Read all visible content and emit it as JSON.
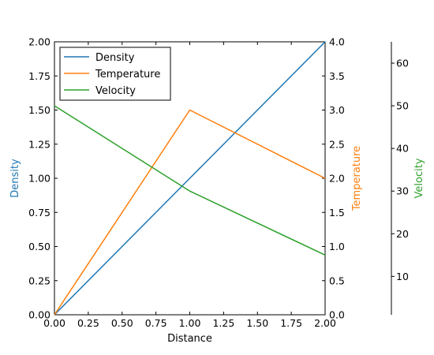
{
  "chart_data": {
    "type": "line",
    "xlabel": "Distance",
    "xlim": [
      0,
      2
    ],
    "xticks": [
      "0.00",
      "0.25",
      "0.50",
      "0.75",
      "1.00",
      "1.25",
      "1.50",
      "1.75",
      "2.00"
    ],
    "x": [
      0,
      1,
      2
    ],
    "grid": false,
    "legend_placement": "top-left",
    "axes": [
      {
        "id": "density",
        "label": "Density",
        "color": "#1f77b4",
        "ylim": [
          0,
          2
        ],
        "ticks": [
          "0.00",
          "0.25",
          "0.50",
          "0.75",
          "1.00",
          "1.25",
          "1.50",
          "1.75",
          "2.00"
        ]
      },
      {
        "id": "temperature",
        "label": "Temperature",
        "color": "#ff7f0e",
        "ylim": [
          0,
          4
        ],
        "ticks": [
          "0.0",
          "0.5",
          "1.0",
          "1.5",
          "2.0",
          "2.5",
          "3.0",
          "3.5",
          "4.0"
        ]
      },
      {
        "id": "velocity",
        "label": "Velocity",
        "color": "#2ca02c",
        "ylim": [
          1,
          65
        ],
        "ticks": [
          "10",
          "20",
          "30",
          "40",
          "50",
          "60"
        ]
      }
    ],
    "series": [
      {
        "name": "Density",
        "axis": "density",
        "color": "#1f77b4",
        "values": [
          0,
          1,
          2
        ]
      },
      {
        "name": "Temperature",
        "axis": "temperature",
        "color": "#ff7f0e",
        "values": [
          0,
          3,
          2
        ]
      },
      {
        "name": "Velocity",
        "axis": "velocity",
        "color": "#2ca02c",
        "values": [
          50,
          30,
          15
        ]
      }
    ]
  }
}
